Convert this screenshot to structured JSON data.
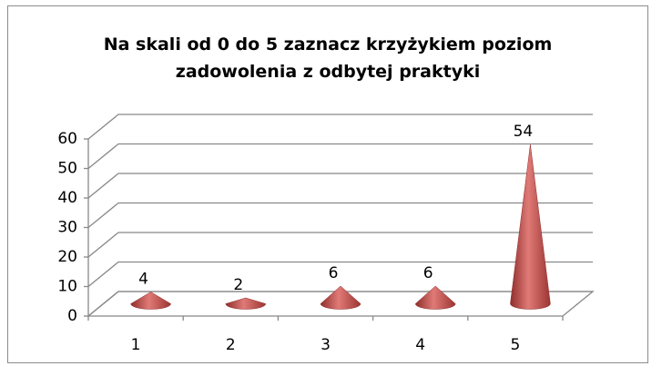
{
  "chart_data": {
    "type": "cone",
    "title": "Na skali od 0 do 5 zaznacz krzyżykiem poziom zadowolenia z odbytej praktyki",
    "categories": [
      "1",
      "2",
      "3",
      "4",
      "5"
    ],
    "values": [
      4,
      2,
      6,
      6,
      54
    ],
    "color": "#c0504d",
    "ylim": [
      0,
      60
    ],
    "yticks": [
      0,
      10,
      20,
      30,
      40,
      50,
      60
    ],
    "grid": true
  }
}
